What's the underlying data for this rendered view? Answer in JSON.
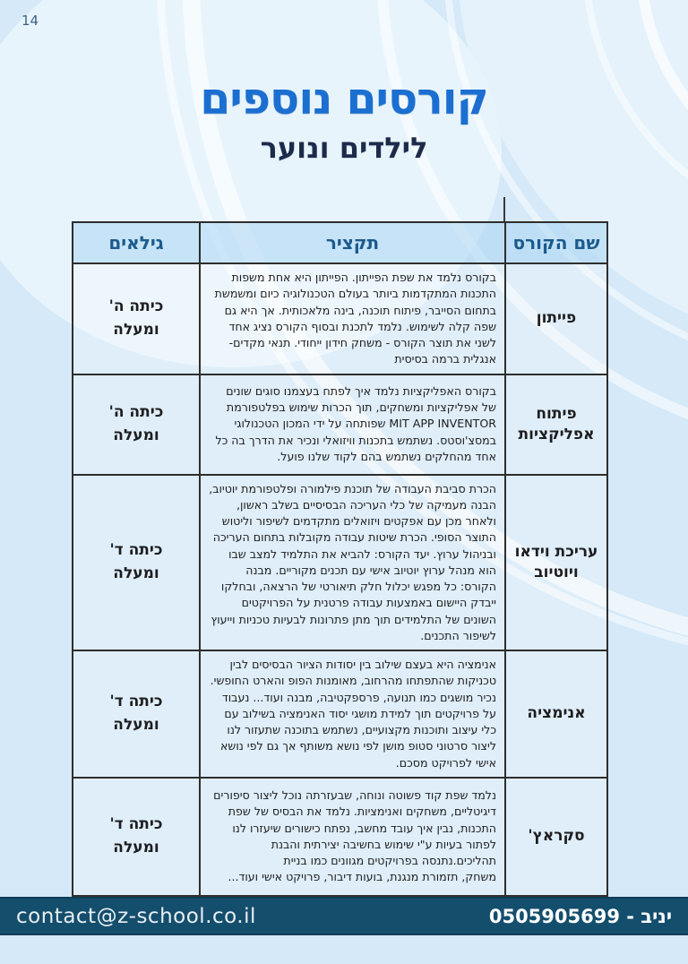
{
  "page": {
    "number": "14"
  },
  "header": {
    "title": "קורסים נוספים",
    "subtitle": "לילדים ונוער"
  },
  "table": {
    "columns": {
      "course": "שם הקורס",
      "summary": "תקציר",
      "ages": "גילאים"
    },
    "rows": [
      {
        "course": "פייתון",
        "summary": "בקורס נלמד את שפת הפייתון. הפייתון היא אחת משפות התכנות המתקדמות ביותר בעולם הטכנולוגיה כיום ומשמשת בתחום הסייבר, פיתוח תוכנה, בינה מלאכותית. אך היא גם שפה קלה לשימוש. נלמד לתכנת ובסוף הקורס נציג אחד לשני את תוצר הקורס - משחק חידון ייחודי. תנאי מקדים- אנגלית ברמה בסיסית",
        "ages": "כיתה ה' ומעלה"
      },
      {
        "course": "פיתוח אפליקציות",
        "summary": "בקורס האפליקציות נלמד איך לפתח בעצמנו סוגים שונים של אפליקציות ומשחקים, תוך הכרות שימוש בפלטפורמת MIT APP INVENTOR שפותחה על ידי המכון הטכנולוגי במסצ'וסטס. נשתמש בתכנות וויזואלי ונכיר את הדרך בה כל אחד מהחלקים נשתמש בהם לקוד שלנו פועל.",
        "ages": "כיתה ה' ומעלה"
      },
      {
        "course": "עריכת וידאו ויוטיוב",
        "summary": "הכרת סביבת העבודה של תוכנת פילמורה ופלטפורמת יוטיוב, הבנה מעמיקה של כלי העריכה הבסיסיים בשלב ראשון, ולאחר מכן עם אפקטים ויזואלים מתקדמים לשיפור וליטוש התוצר הסופי. הכרת שיטות עבודה מקובלות בתחום העריכה ובניהול ערוץ. יעד הקורס: להביא את התלמיד למצב שבו הוא מנהל ערוץ יוטיוב אישי עם תכנים מקוריים. מבנה הקורס: כל מפגש יכלול חלק תיאורטי של הרצאה, ובחלקו ייבדק היישום באמצעות עבודה פרטנית על הפרויקטים השונים של התלמידים תוך מתן פתרונות לבעיות טכניות וייעוץ לשיפור התכנים.",
        "ages": "כיתה ד' ומעלה"
      },
      {
        "course": "אנימציה",
        "summary": "אנימציה היא בעצם שילוב בין יסודות הציור הבסיסים לבין טכניקות שהתפתחו מהרחוב, מאומנות הפופ והארט החופשי. נכיר מושגים כמו תנועה, פרספקטיבה, מבנה ועוד... נעבוד על פרויקטים תוך למידת מושגי יסוד האנימציה בשילוב עם כלי עיצוב ותוכנות מקצועיים, נשתמש בתוכנה שתעזור לנו ליצור סרטוני סטופ מושן לפי נושא משותף אך גם לפי נושא אישי לפרויקט מסכם.",
        "ages": "כיתה ד' ומעלה"
      },
      {
        "course": "סקראץ'",
        "summary": "נלמד שפת קוד פשוטה ונוחה, שבעזרתה נוכל ליצור סיפורים דיגיטליים, משחקים ואנימציות. נלמד את הבסיס של שפת התכנות, נבין איך עובד מחשב, נפתח כישורים שיעזרו לנו לפתור בעיות ע\"י שימוש בחשיבה יצירתית והבנת תהליכים.נתנסה בפרויקטים מגוונים כמו בניית\nמשחק, תזמורת מנגנת, בועות דיבור, פרויקט אישי ועוד...",
        "ages": "כיתה ד' ומעלה"
      }
    ]
  },
  "footer": {
    "email": "contact@z-school.co.il",
    "contact": "יניב - 0505905699"
  },
  "colors": {
    "page_bg": "#d5e9f8",
    "title": "#1b6fd0",
    "subtitle": "#1d2b4a",
    "table_header_text": "#1b5a8c",
    "footer_bg": "#144e6d"
  }
}
